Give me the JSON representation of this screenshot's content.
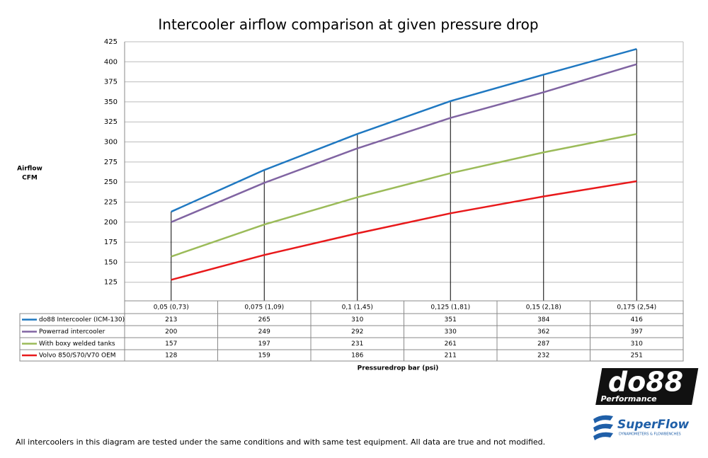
{
  "chart_data": {
    "type": "line",
    "title": "Intercooler airflow comparison at given pressure drop",
    "y_label": [
      "Airflow",
      "CFM"
    ],
    "x_label": "Pressuredrop bar (psi)",
    "categories": [
      "0,05 (0,73)",
      "0,075 (1,09)",
      "0,1 (1,45)",
      "0,125 (1,81)",
      "0,15 (2,18)",
      "0,175 (2,54)"
    ],
    "series": [
      {
        "name": "do88 Intercooler (ICM-130)",
        "color": "#1f78c1",
        "values": [
          213,
          265,
          310,
          351,
          384,
          416
        ]
      },
      {
        "name": "Powerrad intercooler",
        "color": "#8064a2",
        "values": [
          200,
          249,
          292,
          330,
          362,
          397
        ]
      },
      {
        "name": "With boxy welded tanks",
        "color": "#9bbb59",
        "values": [
          157,
          197,
          231,
          261,
          287,
          310
        ]
      },
      {
        "name": "Volvo 850/S70/V70 OEM",
        "color": "#e8191b",
        "values": [
          128,
          159,
          186,
          211,
          232,
          251
        ]
      }
    ],
    "ylim": [
      100,
      425
    ],
    "yticks": [
      125,
      150,
      175,
      200,
      225,
      250,
      275,
      300,
      325,
      350,
      375,
      400,
      425
    ],
    "grid": true,
    "logos": {
      "do88": "do88",
      "do88_sub": "Performance",
      "superflow": "SuperFlow",
      "superflow_sub": "DYNAMOMETERS & FLOWBENCHES"
    },
    "footnote": "All intercoolers in this diagram are tested under the same conditions and with same test equipment. All data are true and not modified."
  }
}
